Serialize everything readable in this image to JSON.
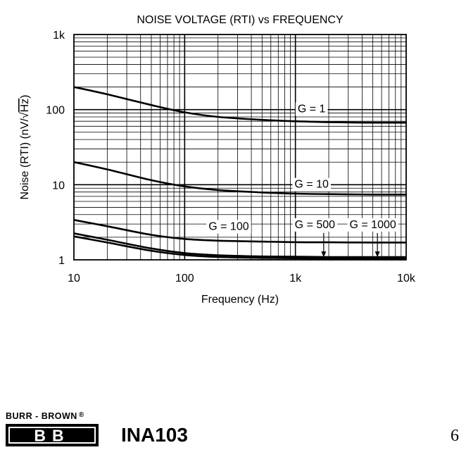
{
  "chart_data": {
    "type": "line",
    "title": "NOISE VOLTAGE (RTI) vs FREQUENCY",
    "xlabel": "Frequency (Hz)",
    "ylabel_prefix": "Noise (RTI) (nV/",
    "ylabel_radicand": "Hz",
    "ylabel_suffix": ")",
    "x_scale": "log",
    "y_scale": "log",
    "xlim": [
      10,
      10000
    ],
    "ylim": [
      1,
      1000
    ],
    "grid": true,
    "x_ticks": [
      {
        "value": 10,
        "label": "10"
      },
      {
        "value": 100,
        "label": "100"
      },
      {
        "value": 1000,
        "label": "1k"
      },
      {
        "value": 10000,
        "label": "10k"
      }
    ],
    "y_ticks": [
      {
        "value": 1,
        "label": "1"
      },
      {
        "value": 10,
        "label": "10"
      },
      {
        "value": 100,
        "label": "100"
      },
      {
        "value": 1000,
        "label": "1k"
      }
    ],
    "series": [
      {
        "name": "G = 1",
        "x": [
          10,
          20,
          50,
          100,
          200,
          500,
          1000,
          2000,
          5000,
          10000
        ],
        "y": [
          200,
          160,
          115,
          92,
          80,
          73,
          70,
          68,
          67,
          67
        ]
      },
      {
        "name": "G = 10",
        "x": [
          10,
          20,
          50,
          100,
          200,
          500,
          1000,
          2000,
          5000,
          10000
        ],
        "y": [
          20,
          16,
          11.5,
          9.5,
          8.5,
          7.9,
          7.6,
          7.5,
          7.4,
          7.4
        ]
      },
      {
        "name": "G = 100",
        "x": [
          10,
          20,
          50,
          100,
          200,
          500,
          1000,
          2000,
          5000,
          10000
        ],
        "y": [
          3.4,
          2.8,
          2.15,
          1.9,
          1.8,
          1.75,
          1.72,
          1.71,
          1.7,
          1.7
        ]
      },
      {
        "name": "G = 500",
        "x": [
          10,
          20,
          50,
          100,
          200,
          500,
          1000,
          2000,
          5000,
          10000
        ],
        "y": [
          2.25,
          1.85,
          1.42,
          1.23,
          1.15,
          1.11,
          1.1,
          1.09,
          1.09,
          1.09
        ]
      },
      {
        "name": "G = 1000",
        "x": [
          10,
          20,
          50,
          100,
          200,
          500,
          1000,
          2000,
          5000,
          10000
        ],
        "y": [
          2.05,
          1.7,
          1.32,
          1.16,
          1.09,
          1.06,
          1.05,
          1.04,
          1.04,
          1.04
        ]
      }
    ],
    "annotations": [
      {
        "text": "G = 1",
        "x": 1400,
        "y": 92,
        "anchor": "middle"
      },
      {
        "text": "G = 10",
        "x": 1400,
        "y": 9.1,
        "anchor": "middle"
      },
      {
        "text": "G = 100",
        "x": 250,
        "y": 2.5,
        "anchor": "middle"
      },
      {
        "text": "G = 500",
        "x": 1500,
        "y": 2.65,
        "anchor": "middle",
        "arrow_x": 1800
      },
      {
        "text": "G = 1000",
        "x": 5000,
        "y": 2.65,
        "anchor": "middle",
        "arrow_x": 5500
      }
    ]
  },
  "footer": {
    "brand": "BURR - BROWN",
    "brand_mark": "®",
    "logo_letters": "BB",
    "part_number": "INA103",
    "page_number": "6"
  }
}
